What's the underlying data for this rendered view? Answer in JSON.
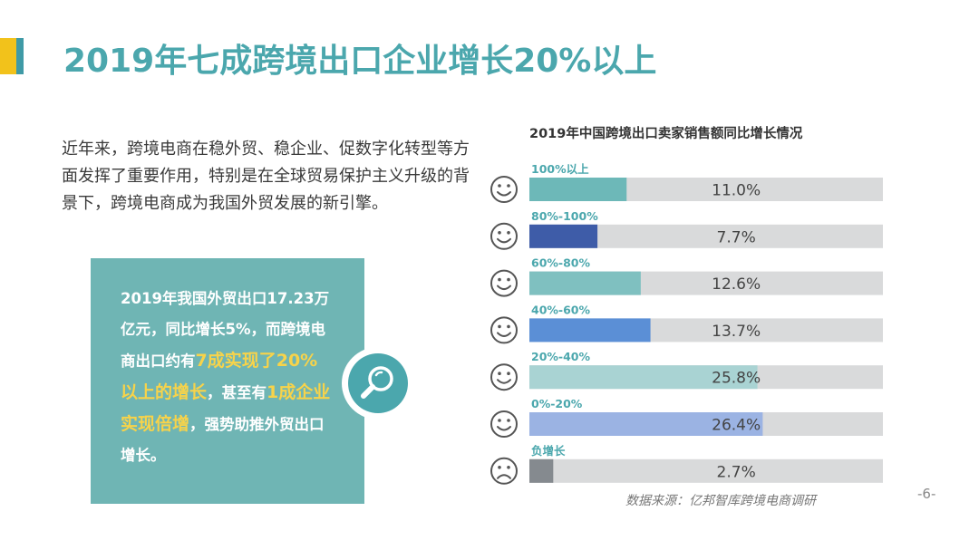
{
  "slide": {
    "title": "2019年七成跨境出口企业增长20%以上",
    "intro": "近年来，跨境电商在稳外贸、稳企业、促数字化转型等方面发挥了重要作用，特别是在全球贸易保护主义升级的背景下，跨境电商成为我国外贸发展的新引擎。",
    "callout": {
      "t1": "2019年我国外贸出口17.23万亿元，同比增长5%，而跨境电商出口约有",
      "h1": "7成实现了20%以上的增长",
      "t2": "，甚至有",
      "h2": "1成企业实现倍增",
      "t3": "，强势助推外贸出口增长。"
    },
    "source": "数据来源：亿邦智库跨境电商调研",
    "page_number": "-6-",
    "colors": {
      "title": "#4ba7ad",
      "accent_yellow": "#f2c21b",
      "callout_bg": "#6fb5b4",
      "highlight": "#f7d34a"
    },
    "icons": {
      "search": "magnifier-icon",
      "happy": "smiley-icon",
      "sad": "sad-face-icon"
    }
  },
  "chart_data": {
    "type": "bar",
    "orientation": "horizontal",
    "title": "2019年中国跨境出口卖家销售额同比增长情况",
    "categories": [
      "100%以上",
      "80%-100%",
      "60%-80%",
      "40%-60%",
      "20%-40%",
      "0%-20%",
      "负增长"
    ],
    "values": [
      11.0,
      7.7,
      12.6,
      13.7,
      25.8,
      26.4,
      2.7
    ],
    "value_labels": [
      "11.0%",
      "7.7%",
      "12.6%",
      "13.7%",
      "25.8%",
      "26.4%",
      "2.7%"
    ],
    "bar_colors": [
      "#6db8b8",
      "#3e5ca8",
      "#7fc0c0",
      "#5b8fd6",
      "#a9d3d3",
      "#9bb3e3",
      "#858a8f"
    ],
    "face_types": [
      "happy",
      "happy",
      "happy",
      "happy",
      "happy",
      "happy",
      "sad"
    ],
    "track_color": "#d9dadb",
    "xlim": [
      0,
      40
    ],
    "grid": false,
    "legend": "none"
  }
}
